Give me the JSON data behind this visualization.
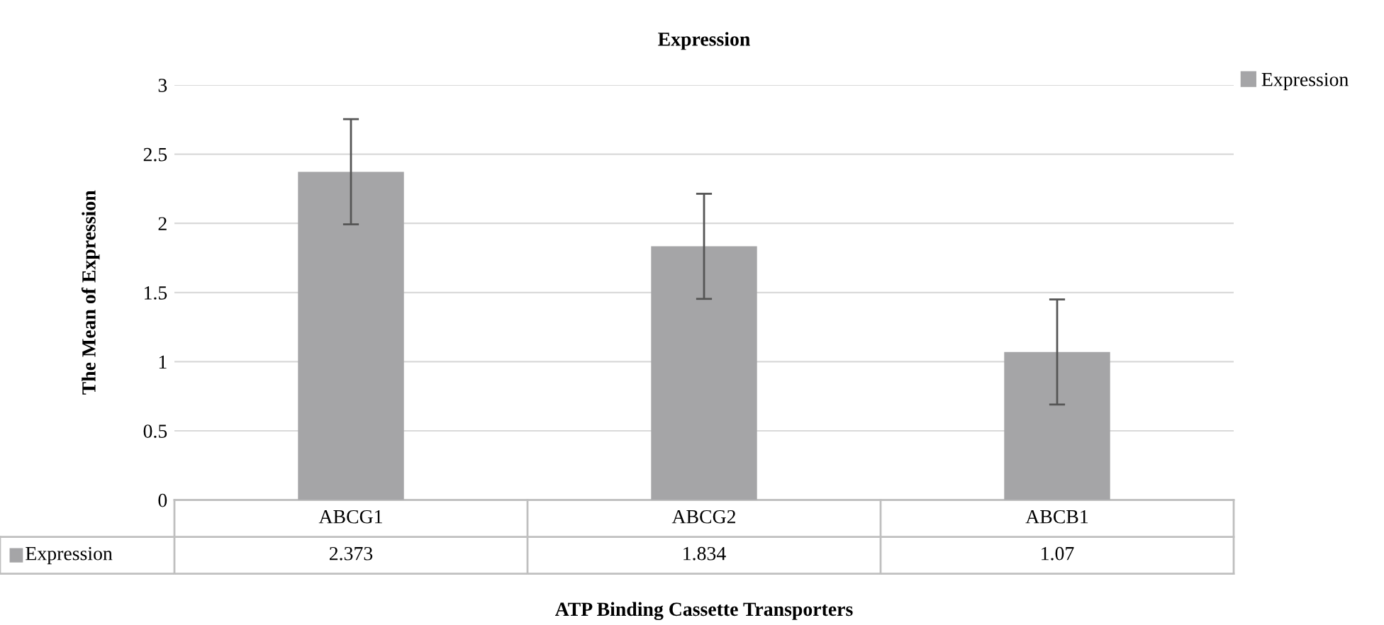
{
  "chart_data": {
    "type": "bar",
    "title": "Expression",
    "xlabel": "ATP Binding Cassette Transporters",
    "ylabel": "The Mean of Expression",
    "categories": [
      "ABCG1",
      "ABCG2",
      "ABCB1"
    ],
    "series": [
      {
        "name": "Expression",
        "color": "#a5a5a7",
        "values": [
          2.373,
          1.834,
          1.07
        ],
        "errors": [
          0.38,
          0.38,
          0.38
        ]
      }
    ],
    "ylim": [
      0,
      3
    ],
    "yticks": [
      0,
      0.5,
      1,
      1.5,
      2,
      2.5,
      3
    ],
    "grid": "y",
    "legend": "top right",
    "data_labels": true
  }
}
